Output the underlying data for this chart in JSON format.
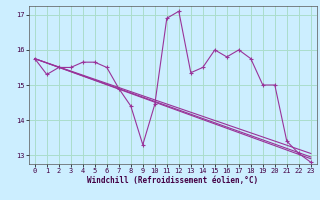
{
  "background_color": "#cceeff",
  "grid_color": "#aaddcc",
  "line_color": "#993399",
  "xlabel": "Windchill (Refroidissement éolien,°C)",
  "xlim": [
    -0.5,
    23.5
  ],
  "ylim": [
    12.75,
    17.25
  ],
  "xticks": [
    0,
    1,
    2,
    3,
    4,
    5,
    6,
    7,
    8,
    9,
    10,
    11,
    12,
    13,
    14,
    15,
    16,
    17,
    18,
    19,
    20,
    21,
    22,
    23
  ],
  "yticks": [
    13,
    14,
    15,
    16,
    17
  ],
  "series": [
    [
      0,
      15.75
    ],
    [
      1,
      15.3
    ],
    [
      2,
      15.5
    ],
    [
      3,
      15.5
    ],
    [
      4,
      15.65
    ],
    [
      5,
      15.65
    ],
    [
      6,
      15.5
    ],
    [
      7,
      14.9
    ],
    [
      8,
      14.4
    ],
    [
      9,
      13.3
    ],
    [
      10,
      14.45
    ],
    [
      11,
      16.9
    ],
    [
      12,
      17.1
    ],
    [
      13,
      15.35
    ],
    [
      14,
      15.5
    ],
    [
      15,
      16.0
    ],
    [
      16,
      15.8
    ],
    [
      17,
      16.0
    ],
    [
      18,
      15.75
    ],
    [
      19,
      15.0
    ],
    [
      20,
      15.0
    ],
    [
      21,
      13.4
    ],
    [
      22,
      13.05
    ],
    [
      23,
      12.8
    ]
  ],
  "line2": [
    [
      0,
      15.75
    ],
    [
      23,
      13.05
    ]
  ],
  "line3": [
    [
      0,
      15.75
    ],
    [
      23,
      12.9
    ]
  ],
  "line4": [
    [
      0,
      15.75
    ],
    [
      23,
      12.95
    ]
  ]
}
